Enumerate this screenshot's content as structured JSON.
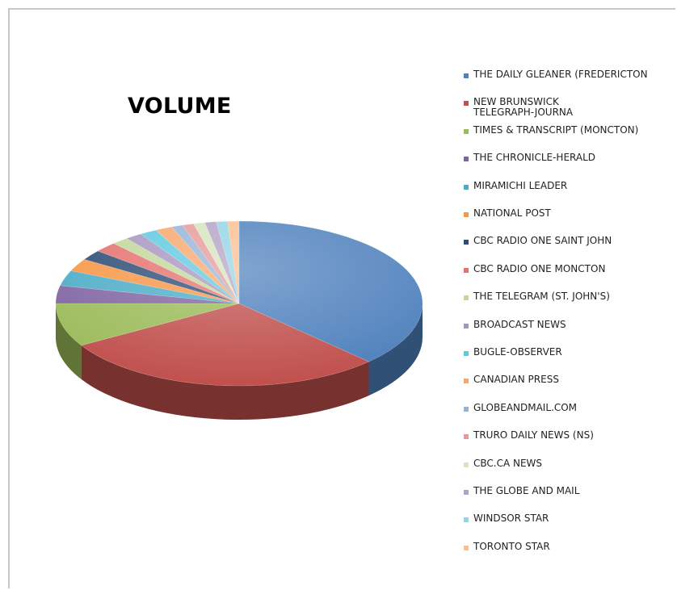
{
  "chart_data": {
    "type": "pie",
    "title": "VOLUME",
    "style": "3d",
    "legend_position": "right",
    "slices": [
      {
        "label": "THE DAILY GLEANER (FREDERICTON",
        "value": 37.5,
        "color": "#4f81bd"
      },
      {
        "label": "NEW BRUNSWICK TELEGRAPH-JOURNA",
        "value": 29.0,
        "color": "#c0504d"
      },
      {
        "label": "TIMES & TRANSCRIPT (MONCTON)",
        "value": 8.5,
        "color": "#9bbb59"
      },
      {
        "label": "THE CHRONICLE-HERALD",
        "value": 3.5,
        "color": "#8064a2"
      },
      {
        "label": "MIRAMICHI LEADER",
        "value": 3.0,
        "color": "#4bacc6"
      },
      {
        "label": "NATIONAL POST",
        "value": 2.5,
        "color": "#f79646"
      },
      {
        "label": "CBC RADIO ONE SAINT JOHN",
        "value": 2.0,
        "color": "#2c4d75"
      },
      {
        "label": "CBC RADIO ONE MONCTON",
        "value": 2.0,
        "color": "#e5716e"
      },
      {
        "label": "THE TELEGRAM (ST. JOHN'S)",
        "value": 1.5,
        "color": "#c3d69b"
      },
      {
        "label": "BROADCAST NEWS",
        "value": 1.5,
        "color": "#a795c0"
      },
      {
        "label": "BUGLE-OBSERVER",
        "value": 1.5,
        "color": "#5fc9e0"
      },
      {
        "label": "CANADIAN PRESS",
        "value": 1.5,
        "color": "#f7a76c"
      },
      {
        "label": "GLOBEANDMAIL.COM",
        "value": 1.0,
        "color": "#95b3d7"
      },
      {
        "label": "TRURO DAILY NEWS (NS)",
        "value": 1.0,
        "color": "#e6999a"
      },
      {
        "label": "CBC.CA NEWS",
        "value": 1.0,
        "color": "#d7e4bc"
      },
      {
        "label": "THE GLOBE AND MAIL",
        "value": 1.0,
        "color": "#b3a2c7"
      },
      {
        "label": "WINDSOR STAR",
        "value": 1.0,
        "color": "#93d4e6"
      },
      {
        "label": "TORONTO STAR",
        "value": 1.0,
        "color": "#fbbf8f"
      }
    ]
  }
}
